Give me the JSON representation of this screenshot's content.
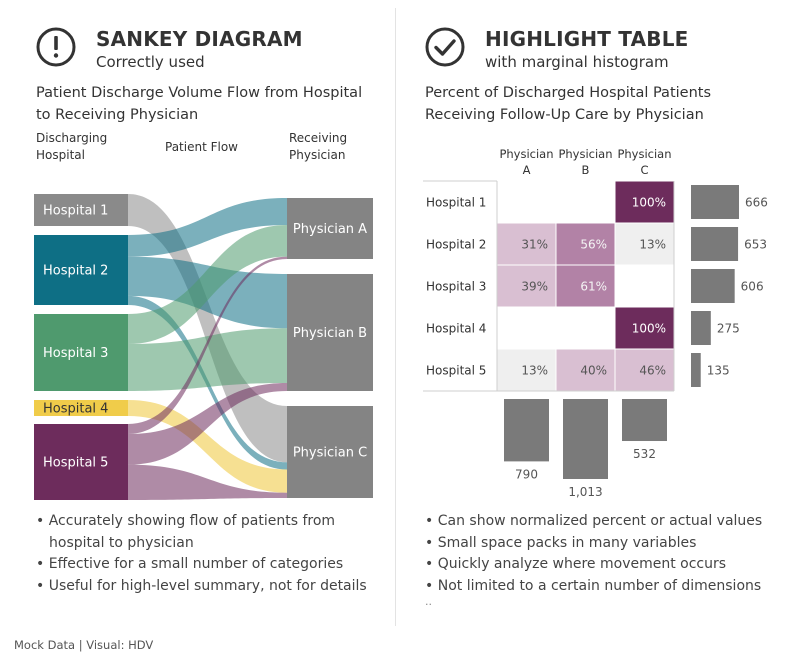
{
  "left": {
    "header": {
      "title": "SANKEY DIAGRAM",
      "subtitle": "Correctly used",
      "icon": "exclamation-circle-icon"
    },
    "chart_title_line1": "Patient Discharge Volume Flow from Hospital",
    "chart_title_line2": "to Receiving Physician",
    "col_headers": {
      "discharging_1": "Discharging",
      "discharging_2": "Hospital",
      "flow": "Patient Flow",
      "receiving_1": "Receiving",
      "receiving_2": "Physician"
    },
    "bullets": [
      "Accurately showing flow of patients from",
      "hospital to physician",
      "Effective for a small number of categories",
      "Useful for high-level summary, not for details"
    ]
  },
  "right": {
    "header": {
      "title": "HIGHLIGHT TABLE",
      "subtitle": "with marginal histogram",
      "icon": "check-circle-icon"
    },
    "chart_title_line1": "Percent of Discharged Hospital Patients",
    "chart_title_line2": "Receiving Follow-Up Care by Physician",
    "bullets": [
      "Can show normalized percent or actual values",
      "Small space packs in many variables",
      "Quickly analyze where movement occurs",
      "Not limited to a certain number of dimensions"
    ],
    "ellipsis": ".."
  },
  "footer": "Mock Data  |  Visual: HDV",
  "colors": {
    "hospital_1": "#8a8a8a",
    "hospital_2": "#0e6f85",
    "hospital_3": "#4f9a6e",
    "hospital_4": "#f0cc4a",
    "hospital_5": "#6d2c5c",
    "physician": "#848484"
  },
  "chart_data": [
    {
      "type": "sankey",
      "sources": [
        "Hospital 1",
        "Hospital 2",
        "Hospital 3",
        "Hospital 4",
        "Hospital 5"
      ],
      "targets": [
        "Physician A",
        "Physician B",
        "Physician C"
      ],
      "flows": [
        {
          "from": "Hospital 1",
          "to": "Physician C",
          "value": 100
        },
        {
          "from": "Hospital 2",
          "to": "Physician A",
          "value": 31
        },
        {
          "from": "Hospital 2",
          "to": "Physician B",
          "value": 56
        },
        {
          "from": "Hospital 2",
          "to": "Physician C",
          "value": 13
        },
        {
          "from": "Hospital 3",
          "to": "Physician A",
          "value": 39
        },
        {
          "from": "Hospital 3",
          "to": "Physician B",
          "value": 61
        },
        {
          "from": "Hospital 4",
          "to": "Physician C",
          "value": 100
        },
        {
          "from": "Hospital 5",
          "to": "Physician A",
          "value": 13
        },
        {
          "from": "Hospital 5",
          "to": "Physician B",
          "value": 40
        },
        {
          "from": "Hospital 5",
          "to": "Physician C",
          "value": 46
        }
      ]
    },
    {
      "type": "heatmap",
      "columns": [
        "Physician A",
        "Physician B",
        "Physician C"
      ],
      "column_label_lines": [
        [
          "Physician",
          "A"
        ],
        [
          "Physician",
          "B"
        ],
        [
          "Physician",
          "C"
        ]
      ],
      "rows": [
        "Hospital 1",
        "Hospital 2",
        "Hospital 3",
        "Hospital 4",
        "Hospital 5"
      ],
      "values": [
        [
          null,
          null,
          100
        ],
        [
          31,
          56,
          13
        ],
        [
          39,
          61,
          null
        ],
        [
          null,
          null,
          100
        ],
        [
          13,
          40,
          46
        ]
      ],
      "value_format": "percent",
      "row_totals": [
        666,
        653,
        606,
        275,
        135
      ],
      "row_total_labels": [
        "666",
        "653",
        "606",
        "275",
        "135"
      ],
      "column_totals": [
        790,
        1013,
        532
      ],
      "column_total_labels": [
        "790",
        "1,013",
        "532"
      ]
    }
  ]
}
